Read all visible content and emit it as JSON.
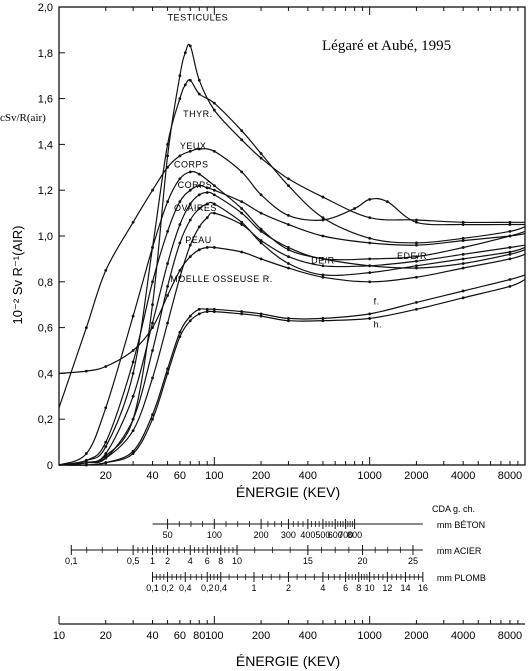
{
  "chart_data": {
    "type": "line",
    "title": "Légaré et Aubé, 1995",
    "ylabel_side": "cSv/R(air)",
    "ylabel_main": "10⁻² Sv   R⁻¹(AIR)",
    "xlabel": "ÉNERGIE (KEV)",
    "xlabel_bottom": "ÉNERGIE (KEV)",
    "xscale": "log",
    "xlim": [
      10,
      10000
    ],
    "ylim": [
      0,
      2.0
    ],
    "y_ticks": [
      "0",
      "0,2",
      "0,4",
      "0,6",
      "0,8",
      "1,0",
      "1,2",
      "1,4",
      "1,6",
      "1,8",
      "2,0"
    ],
    "x_ticks_top": [
      {
        "v": 20,
        "label": "20"
      },
      {
        "v": 40,
        "label": "40"
      },
      {
        "v": 60,
        "label": "60"
      },
      {
        "v": 100,
        "label": "100"
      },
      {
        "v": 200,
        "label": "200"
      },
      {
        "v": 400,
        "label": "400"
      },
      {
        "v": 1000,
        "label": "1000"
      },
      {
        "v": 2000,
        "label": "2000"
      },
      {
        "v": 4000,
        "label": "4000"
      },
      {
        "v": 8000,
        "label": "8000"
      }
    ],
    "x_ticks_bottom": [
      {
        "v": 10,
        "label": "10"
      },
      {
        "v": 20,
        "label": "20"
      },
      {
        "v": 40,
        "label": "40"
      },
      {
        "v": 60,
        "label": "60"
      },
      {
        "v": 80,
        "label": "80"
      },
      {
        "v": 100,
        "label": "100"
      },
      {
        "v": 200,
        "label": "200"
      },
      {
        "v": 400,
        "label": "400"
      },
      {
        "v": 1000,
        "label": "1000"
      },
      {
        "v": 2000,
        "label": "2000"
      },
      {
        "v": 4000,
        "label": "4000"
      },
      {
        "v": 8000,
        "label": "8000"
      }
    ],
    "series": [
      {
        "name": "TESTICULES",
        "x": [
          10,
          15,
          20,
          30,
          40,
          50,
          60,
          65,
          70,
          80,
          100,
          150,
          200,
          300,
          500,
          1000,
          2000,
          4000,
          8000,
          10000
        ],
        "y": [
          0,
          0.01,
          0.04,
          0.2,
          0.7,
          1.35,
          1.7,
          1.8,
          1.83,
          1.68,
          1.55,
          1.42,
          1.34,
          1.25,
          1.17,
          1.08,
          1.07,
          1.06,
          1.06,
          1.06
        ]
      },
      {
        "name": "THYR.",
        "x": [
          10,
          15,
          20,
          30,
          40,
          50,
          60,
          65,
          70,
          80,
          100,
          150,
          200,
          300,
          500,
          1000,
          2000,
          4000,
          8000,
          10000
        ],
        "y": [
          0,
          0.02,
          0.08,
          0.4,
          0.95,
          1.4,
          1.6,
          1.66,
          1.68,
          1.62,
          1.58,
          1.46,
          1.36,
          1.22,
          1.08,
          0.99,
          0.97,
          0.99,
          1.02,
          1.04
        ]
      },
      {
        "name": "YEUX",
        "x": [
          10,
          15,
          20,
          30,
          40,
          50,
          60,
          70,
          80,
          100,
          150,
          200,
          300,
          500,
          800,
          1000,
          1300,
          2000,
          4000,
          8000,
          10000
        ],
        "y": [
          0.25,
          0.6,
          0.85,
          1.06,
          1.2,
          1.3,
          1.35,
          1.37,
          1.38,
          1.37,
          1.28,
          1.18,
          1.09,
          1.07,
          1.12,
          1.16,
          1.15,
          1.06,
          1.05,
          1.05,
          1.05
        ]
      },
      {
        "name": "CORPS",
        "x": [
          10,
          15,
          20,
          30,
          40,
          50,
          60,
          70,
          80,
          100,
          150,
          200,
          300,
          500,
          1000,
          2000,
          4000,
          8000,
          10000
        ],
        "y": [
          0,
          0.05,
          0.25,
          0.65,
          0.95,
          1.15,
          1.25,
          1.28,
          1.27,
          1.22,
          1.12,
          1.03,
          0.94,
          0.9,
          0.87,
          0.86,
          0.88,
          0.92,
          0.94
        ]
      },
      {
        "name": "CORPS",
        "x": [
          10,
          15,
          20,
          30,
          40,
          50,
          60,
          70,
          80,
          90,
          100,
          150,
          200,
          300,
          500,
          1000,
          2000,
          4000,
          8000,
          10000
        ],
        "y": [
          0,
          0.02,
          0.1,
          0.45,
          0.8,
          1.02,
          1.15,
          1.2,
          1.22,
          1.21,
          1.2,
          1.15,
          1.1,
          1.05,
          1.0,
          0.97,
          0.96,
          0.98,
          1.0,
          1.01
        ]
      },
      {
        "name": "OVAIRES",
        "x": [
          10,
          15,
          20,
          30,
          40,
          50,
          60,
          70,
          80,
          90,
          100,
          150,
          200,
          300,
          500,
          1000,
          2000,
          4000,
          8000,
          10000
        ],
        "y": [
          0,
          0.01,
          0.05,
          0.3,
          0.62,
          0.88,
          1.05,
          1.14,
          1.18,
          1.19,
          1.18,
          1.1,
          1.02,
          0.95,
          0.9,
          0.9,
          0.91,
          0.95,
          1.0,
          1.02
        ]
      },
      {
        "name": "PEAU",
        "x": [
          10,
          15,
          20,
          30,
          40,
          50,
          60,
          70,
          80,
          90,
          100,
          150,
          200,
          300,
          500,
          1000,
          2000,
          4000,
          8000,
          10000
        ],
        "y": [
          0.4,
          0.41,
          0.43,
          0.5,
          0.6,
          0.74,
          0.85,
          0.91,
          0.94,
          0.95,
          0.95,
          0.93,
          0.9,
          0.86,
          0.82,
          0.8,
          0.82,
          0.86,
          0.9,
          0.92
        ]
      },
      {
        "name": "DE/R",
        "x": [
          10,
          15,
          20,
          30,
          40,
          50,
          60,
          70,
          80,
          90,
          100,
          150,
          200,
          300,
          500,
          1000,
          2000,
          4000,
          8000,
          10000
        ],
        "y": [
          0,
          0.01,
          0.03,
          0.2,
          0.5,
          0.78,
          0.97,
          1.07,
          1.12,
          1.14,
          1.14,
          1.06,
          0.97,
          0.88,
          0.83,
          0.84,
          0.87,
          0.9,
          0.93,
          0.95
        ]
      },
      {
        "name": "EDE/R",
        "x": [
          10,
          15,
          20,
          30,
          40,
          50,
          60,
          70,
          80,
          90,
          100,
          150,
          200,
          300,
          500,
          1000,
          2000,
          4000,
          8000,
          10000
        ],
        "y": [
          0,
          0.01,
          0.03,
          0.15,
          0.38,
          0.62,
          0.82,
          0.96,
          1.04,
          1.08,
          1.1,
          1.05,
          0.98,
          0.91,
          0.87,
          0.87,
          0.89,
          0.92,
          0.95,
          0.96
        ]
      },
      {
        "name": "MOELLE OSSEUSE R. f.",
        "x": [
          10,
          15,
          20,
          30,
          40,
          50,
          60,
          70,
          80,
          90,
          100,
          150,
          200,
          300,
          500,
          1000,
          2000,
          4000,
          8000,
          10000
        ],
        "y": [
          0,
          0,
          0.01,
          0.06,
          0.22,
          0.42,
          0.58,
          0.65,
          0.68,
          0.68,
          0.68,
          0.67,
          0.66,
          0.64,
          0.64,
          0.66,
          0.71,
          0.76,
          0.81,
          0.83
        ]
      },
      {
        "name": "MOELLE OSSEUSE R. h.",
        "x": [
          10,
          15,
          20,
          30,
          40,
          50,
          60,
          70,
          80,
          90,
          100,
          150,
          200,
          300,
          500,
          1000,
          2000,
          4000,
          8000,
          10000
        ],
        "y": [
          0,
          0,
          0.01,
          0.05,
          0.2,
          0.4,
          0.56,
          0.63,
          0.66,
          0.67,
          0.67,
          0.66,
          0.65,
          0.63,
          0.63,
          0.64,
          0.68,
          0.73,
          0.78,
          0.81
        ]
      }
    ],
    "curve_labels": [
      {
        "text": "TESTICULES",
        "x": 50,
        "y": 1.94
      },
      {
        "text": "THYR.",
        "x": 63,
        "y": 1.52
      },
      {
        "text": "YEUX",
        "x": 60,
        "y": 1.38
      },
      {
        "text": "CORPS",
        "x": 55,
        "y": 1.3
      },
      {
        "text": "CORPS",
        "x": 58,
        "y": 1.21
      },
      {
        "text": "OVAIRES",
        "x": 55,
        "y": 1.11
      },
      {
        "text": "PEAU",
        "x": 65,
        "y": 0.97
      },
      {
        "text": "DE/R",
        "x": 420,
        "y": 0.88
      },
      {
        "text": "EDE/R",
        "x": 1500,
        "y": 0.9
      },
      {
        "text": "MOELLE OSSEUSE R.",
        "x": 52,
        "y": 0.8
      },
      {
        "text": "f.",
        "x": 1060,
        "y": 0.7
      },
      {
        "text": "h.",
        "x": 1060,
        "y": 0.6
      }
    ],
    "hvl": {
      "header": "CDA  g. ch.",
      "scales": [
        {
          "unit": "mm BÉTON",
          "ticks": [
            {
              "v": 50,
              "label": "50"
            },
            {
              "v": 100,
              "label": "100"
            },
            {
              "v": 200,
              "label": "200"
            },
            {
              "v": 300,
              "label": "300"
            },
            {
              "v": 400,
              "label": "400"
            },
            {
              "v": 500,
              "label": "500"
            },
            {
              "v": 600,
              "label": "600"
            },
            {
              "v": 700,
              "label": "700"
            },
            {
              "v": 800,
              "label": "800"
            }
          ],
          "start": 40,
          "end": 2200
        },
        {
          "unit": "mm ACIER",
          "ticks": [
            {
              "v": 12,
              "label": "0,1"
            },
            {
              "v": 30,
              "label": "0,5"
            },
            {
              "v": 40,
              "label": "1"
            },
            {
              "v": 50,
              "label": "2"
            },
            {
              "v": 70,
              "label": "4"
            },
            {
              "v": 90,
              "label": "6"
            },
            {
              "v": 110,
              "label": "8"
            },
            {
              "v": 140,
              "label": "10"
            },
            {
              "v": 400,
              "label": "15"
            },
            {
              "v": 900,
              "label": "20"
            },
            {
              "v": 1900,
              "label": "25"
            }
          ],
          "start": 12,
          "end": 2200
        },
        {
          "unit": "mm PLOMB",
          "ticks": [
            {
              "v": 40,
              "label": "0,1"
            },
            {
              "v": 50,
              "label": "0,2"
            },
            {
              "v": 65,
              "label": "0,4"
            },
            {
              "v": 90,
              "label": "0,2"
            },
            {
              "v": 110,
              "label": "0,4"
            },
            {
              "v": 180,
              "label": "1"
            },
            {
              "v": 300,
              "label": "2"
            },
            {
              "v": 500,
              "label": "4"
            },
            {
              "v": 700,
              "label": "6"
            },
            {
              "v": 850,
              "label": "8"
            },
            {
              "v": 1000,
              "label": "10"
            },
            {
              "v": 1300,
              "label": "12"
            },
            {
              "v": 1700,
              "label": "14"
            },
            {
              "v": 2200,
              "label": "16"
            }
          ],
          "start": 40,
          "end": 2200
        }
      ]
    }
  }
}
